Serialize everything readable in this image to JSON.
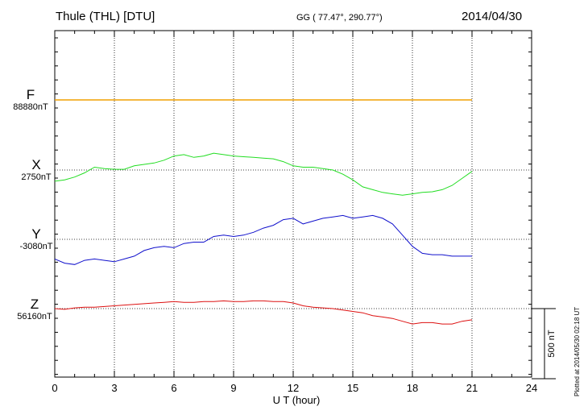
{
  "header": {
    "station": "Thule (THL)  [DTU]",
    "coords": "GG ( 77.47°, 290.77°)",
    "date": "2014/04/30"
  },
  "footer": {
    "plotted": "Plotted at 2014/05/30 02:18 UT"
  },
  "colors": {
    "F": "#f0a000",
    "X": "#22dd22",
    "Y": "#1010cc",
    "Z": "#dd1010"
  },
  "chart_data": {
    "type": "line",
    "title": "Thule (THL)  [DTU]",
    "xlabel": "U T (hour)",
    "xlim": [
      0,
      24
    ],
    "x_ticks": [
      "0",
      "3",
      "6",
      "9",
      "12",
      "15",
      "18",
      "21",
      "24"
    ],
    "scale_label": "500 nT",
    "scale_nT": 500,
    "components": [
      {
        "name": "F",
        "baseline_label": "88880nT",
        "baseline_nT": 88880,
        "x": [
          0,
          21
        ],
        "values": [
          0,
          0
        ]
      },
      {
        "name": "X",
        "baseline_label": "2750nT",
        "baseline_nT": 2750,
        "x": [
          0,
          0.5,
          1,
          1.5,
          2,
          2.5,
          3,
          3.5,
          4,
          4.5,
          5,
          5.5,
          6,
          6.5,
          7,
          7.5,
          8,
          8.5,
          9,
          9.5,
          10,
          10.5,
          11,
          11.5,
          12,
          12.5,
          13,
          13.5,
          14,
          14.5,
          15,
          15.5,
          16,
          16.5,
          17,
          17.5,
          18,
          18.5,
          19,
          19.5,
          20,
          20.5,
          21
        ],
        "values": [
          -80,
          -70,
          -50,
          -20,
          20,
          10,
          5,
          5,
          30,
          40,
          50,
          70,
          100,
          110,
          90,
          100,
          120,
          110,
          100,
          95,
          90,
          85,
          80,
          60,
          30,
          20,
          20,
          10,
          0,
          -30,
          -70,
          -120,
          -140,
          -160,
          -170,
          -180,
          -170,
          -160,
          -155,
          -140,
          -110,
          -60,
          -10
        ]
      },
      {
        "name": "Y",
        "baseline_label": "-3080nT",
        "baseline_nT": -3080,
        "x": [
          0,
          0.5,
          1,
          1.5,
          2,
          2.5,
          3,
          3.5,
          4,
          4.5,
          5,
          5.5,
          6,
          6.5,
          7,
          7.5,
          8,
          8.5,
          9,
          9.5,
          10,
          10.5,
          11,
          11.5,
          12,
          12.5,
          13,
          13.5,
          14,
          14.5,
          15,
          15.5,
          16,
          16.5,
          17,
          17.5,
          18,
          18.5,
          19,
          19.5,
          20,
          20.5,
          21
        ],
        "values": [
          -140,
          -170,
          -180,
          -150,
          -140,
          -150,
          -160,
          -140,
          -120,
          -80,
          -60,
          -50,
          -60,
          -30,
          -20,
          -20,
          20,
          30,
          20,
          30,
          50,
          80,
          100,
          140,
          150,
          110,
          130,
          150,
          160,
          170,
          150,
          160,
          170,
          150,
          110,
          30,
          -50,
          -100,
          -110,
          -110,
          -120,
          -120,
          -120
        ]
      },
      {
        "name": "Z",
        "baseline_label": "56160nT",
        "baseline_nT": 56160,
        "x": [
          0,
          0.5,
          1,
          1.5,
          2,
          2.5,
          3,
          3.5,
          4,
          4.5,
          5,
          5.5,
          6,
          6.5,
          7,
          7.5,
          8,
          8.5,
          9,
          9.5,
          10,
          10.5,
          11,
          11.5,
          12,
          12.5,
          13,
          13.5,
          14,
          14.5,
          15,
          15.5,
          16,
          16.5,
          17,
          17.5,
          18,
          18.5,
          19,
          19.5,
          20,
          20.5,
          21
        ],
        "values": [
          0,
          -5,
          5,
          10,
          10,
          15,
          20,
          25,
          30,
          35,
          40,
          45,
          50,
          45,
          45,
          50,
          50,
          55,
          50,
          50,
          55,
          55,
          50,
          50,
          40,
          20,
          10,
          5,
          0,
          -10,
          -20,
          -30,
          -50,
          -60,
          -70,
          -90,
          -110,
          -100,
          -100,
          -110,
          -110,
          -90,
          -80
        ]
      }
    ]
  }
}
